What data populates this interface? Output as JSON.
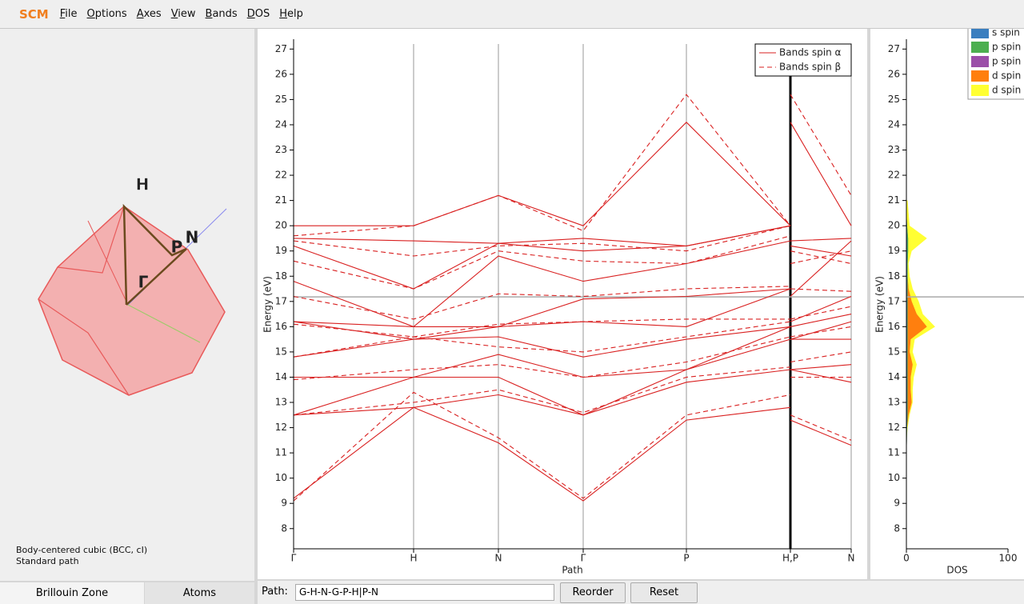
{
  "menu": {
    "logo": "SCM",
    "items": [
      "File",
      "Options",
      "Axes",
      "View",
      "Bands",
      "DOS",
      "Help"
    ]
  },
  "brillouin": {
    "labels": [
      "H",
      "P",
      "N",
      "Γ"
    ],
    "description": [
      "Body-centered cubic (BCC, cI)",
      "Standard path"
    ],
    "tabs": [
      "Brillouin Zone",
      "Atoms"
    ]
  },
  "path_bar": {
    "label": "Path:",
    "value": "G-H-N-G-P-H|P-N",
    "buttons": [
      "Reorder",
      "Reset"
    ]
  },
  "fermi_level": 17.18,
  "chart_data": [
    {
      "type": "line",
      "xlabel": "Path",
      "ylabel": "Energy (eV)",
      "x": [
        0,
        150,
        256,
        362,
        491,
        621,
        621,
        621,
        697
      ],
      "xlim": [
        0,
        697
      ],
      "xticks": [
        {
          "value": 0,
          "label": "Γ"
        },
        {
          "value": 150,
          "label": "H"
        },
        {
          "value": 256,
          "label": "N"
        },
        {
          "value": 362,
          "label": "Γ"
        },
        {
          "value": 491,
          "label": "P"
        },
        {
          "value": 621,
          "label": "H,P"
        },
        {
          "value": 697,
          "label": "N"
        }
      ],
      "ylim": [
        7.2,
        27.2
      ],
      "yticks": [
        8,
        9,
        10,
        11,
        12,
        13,
        14,
        15,
        16,
        17,
        18,
        19,
        20,
        21,
        22,
        23,
        24,
        25,
        26,
        27
      ],
      "legend": "upper right",
      "series": [
        {
          "name": "Bands spin α",
          "color": "#d92020",
          "dashed": false,
          "bands": [
            [
              9.2,
              12.8,
              11.4,
              9.1,
              12.3,
              12.8,
              null,
              12.3,
              11.3
            ],
            [
              12.5,
              12.8,
              13.3,
              12.5,
              13.8,
              14.3,
              null,
              14.3,
              13.8
            ],
            [
              12.5,
              14.0,
              14.0,
              12.5,
              14.3,
              15.5,
              null,
              14.3,
              14.5
            ],
            [
              14.0,
              14.0,
              14.9,
              14.0,
              14.3,
              16.0,
              null,
              15.5,
              15.5
            ],
            [
              14.8,
              15.5,
              15.6,
              14.8,
              15.5,
              16.0,
              null,
              15.5,
              16.2
            ],
            [
              16.2,
              15.5,
              16.0,
              16.2,
              16.0,
              17.5,
              null,
              16.0,
              16.5
            ],
            [
              16.2,
              16.0,
              16.0,
              17.1,
              17.2,
              17.5,
              null,
              16.2,
              17.2
            ],
            [
              17.8,
              16.0,
              18.8,
              17.8,
              18.5,
              19.4,
              null,
              17.2,
              19.4
            ],
            [
              19.2,
              17.5,
              19.3,
              19.0,
              19.2,
              20.0,
              null,
              19.2,
              18.8
            ],
            [
              19.5,
              19.4,
              19.3,
              19.5,
              19.2,
              20.0,
              null,
              19.4,
              19.5
            ],
            [
              20.0,
              20.0,
              21.2,
              20.0,
              24.1,
              20.0,
              null,
              24.1,
              20.0
            ]
          ]
        },
        {
          "name": "Bands spin β",
          "color": "#d92020",
          "dashed": true,
          "bands": [
            [
              9.1,
              13.4,
              11.6,
              9.2,
              12.5,
              13.3,
              null,
              12.5,
              11.5
            ],
            [
              12.5,
              13.0,
              13.5,
              12.6,
              14.0,
              14.4,
              null,
              14.0,
              14.0
            ],
            [
              13.9,
              14.3,
              14.5,
              14.0,
              14.6,
              15.6,
              null,
              14.6,
              15.0
            ],
            [
              14.8,
              15.6,
              15.2,
              15.0,
              15.6,
              16.2,
              null,
              15.6,
              16.0
            ],
            [
              16.1,
              15.6,
              16.1,
              16.2,
              16.3,
              16.3,
              null,
              16.3,
              16.8
            ],
            [
              17.2,
              16.3,
              17.3,
              17.2,
              17.5,
              17.6,
              null,
              17.5,
              17.4
            ],
            [
              18.6,
              17.5,
              19.0,
              18.6,
              18.5,
              19.6,
              null,
              18.5,
              19.0
            ],
            [
              19.4,
              18.8,
              19.2,
              19.3,
              19.0,
              20.0,
              null,
              19.0,
              18.5
            ],
            [
              19.6,
              20.0,
              21.2,
              19.8,
              25.2,
              20.0,
              null,
              25.2,
              21.2
            ]
          ]
        }
      ]
    },
    {
      "type": "area",
      "orientation": "horizontal",
      "xlabel": "DOS",
      "y": [
        11,
        11.5,
        12,
        12.5,
        13,
        13.5,
        14,
        14.5,
        15,
        15.5,
        16,
        16.5,
        17,
        17.5,
        18,
        18.5,
        19,
        19.5,
        20,
        20.5,
        21
      ],
      "xlim": [
        0,
        100
      ],
      "xticks": [
        0,
        100
      ],
      "ylim": [
        7.2,
        27.2
      ],
      "yticks": [
        8,
        9,
        10,
        11,
        12,
        13,
        14,
        15,
        16,
        17,
        18,
        19,
        20,
        21,
        22,
        23,
        24,
        25,
        26,
        27
      ],
      "legend": "upper right",
      "series": [
        {
          "name": "s spin",
          "color": "#3a7ebf",
          "values": [
            0,
            0,
            0.3,
            0.5,
            0.5,
            0.5,
            0.5,
            0.5,
            0.5,
            0.5,
            0.5,
            0.5,
            0.5,
            0.5,
            0.5,
            0.5,
            0.5,
            0.5,
            0.3,
            0,
            0
          ]
        },
        {
          "name": "p spin",
          "color": "#4caf50",
          "values": [
            0,
            0.3,
            0.5,
            1,
            1,
            1,
            1,
            1,
            1,
            1,
            1,
            1,
            1,
            1,
            1,
            1,
            1.5,
            1.5,
            0.5,
            0,
            0
          ]
        },
        {
          "name": "p spin",
          "color": "#9b4fa8",
          "values": [
            0,
            0.3,
            0.5,
            1,
            1,
            1,
            1,
            1,
            1,
            1,
            1,
            1,
            1,
            1,
            1,
            1,
            1.5,
            1.5,
            0.5,
            0,
            0
          ]
        },
        {
          "name": "d spin",
          "color": "#ff7f0e",
          "values": [
            0,
            0,
            0.5,
            2,
            5,
            4,
            4,
            6,
            3,
            4,
            20,
            10,
            5,
            2,
            1,
            0.5,
            1,
            0.5,
            0,
            0,
            0
          ]
        },
        {
          "name": "d spin",
          "color": "#ffff33",
          "values": [
            0,
            0,
            1,
            3,
            6,
            6,
            7,
            10,
            6,
            8,
            28,
            16,
            12,
            6,
            3,
            2,
            5,
            20,
            3,
            2,
            1
          ]
        }
      ]
    }
  ]
}
